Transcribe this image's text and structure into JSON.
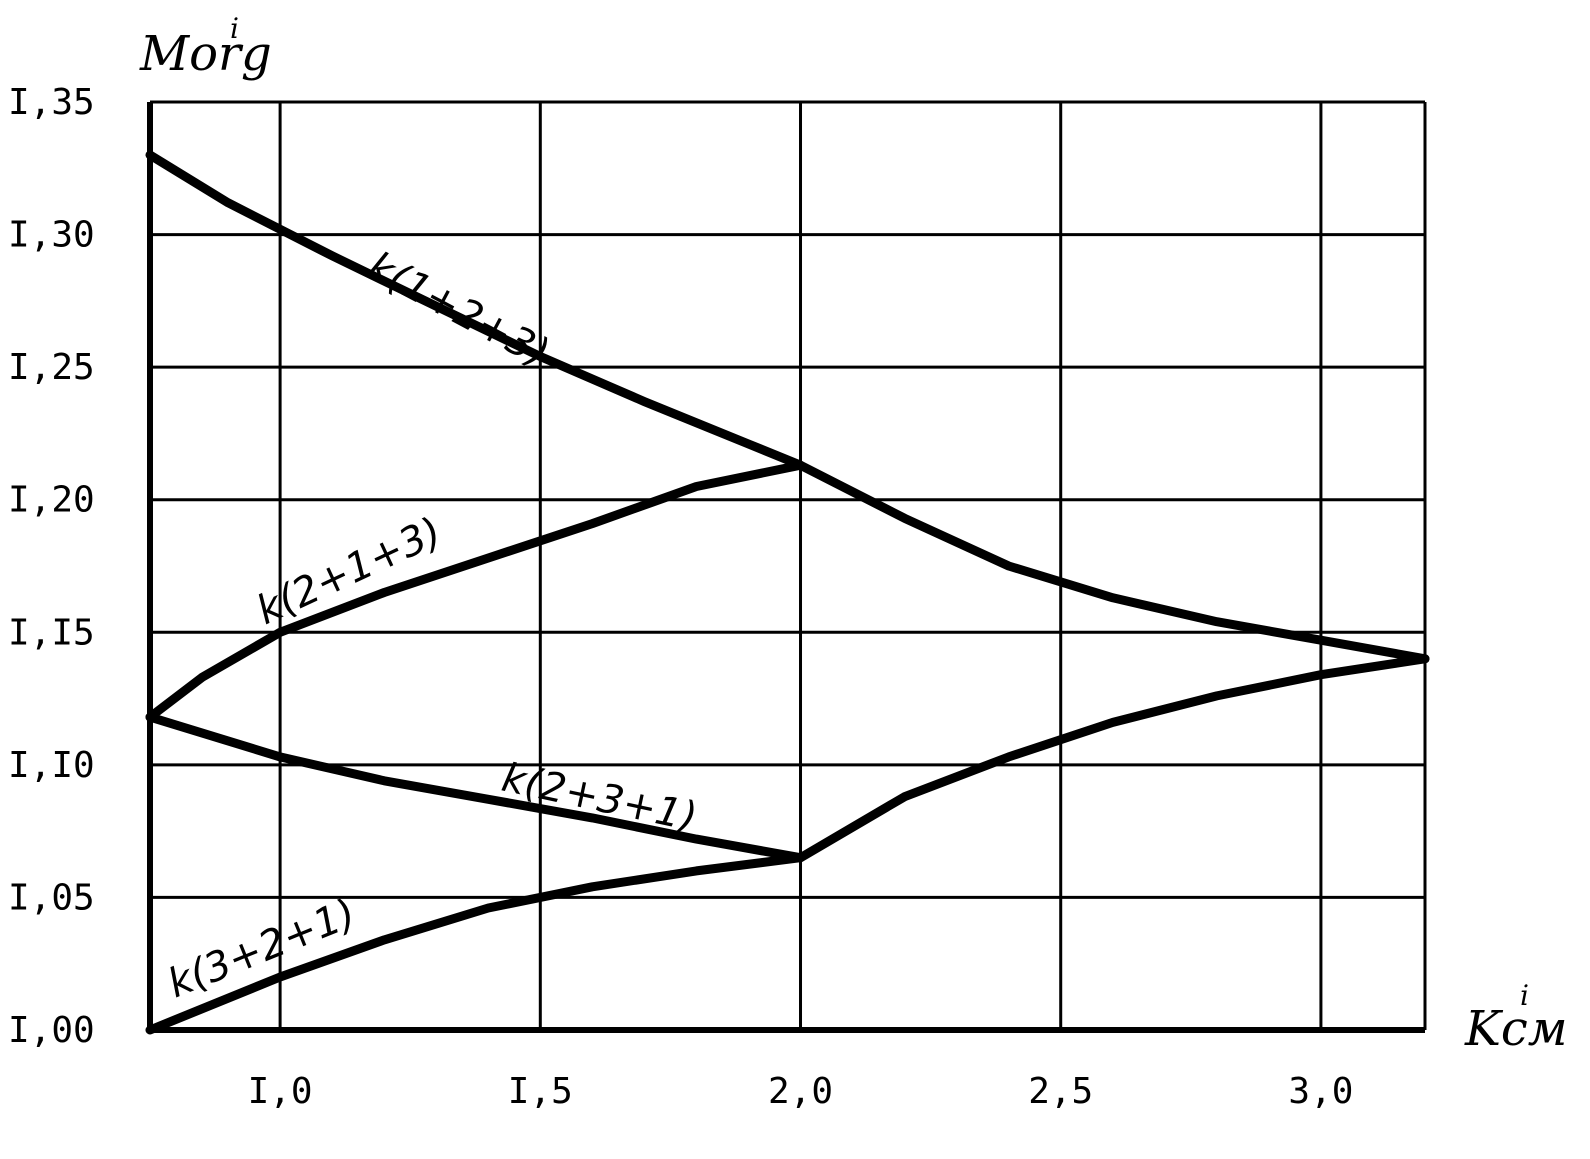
{
  "chart_data": {
    "type": "line",
    "xlabel": "Kсм",
    "xlabel_superscript": "i",
    "ylabel": "Morg",
    "ylabel_superscript": "i",
    "xlim": [
      0.75,
      3.2
    ],
    "ylim": [
      1.0,
      1.35
    ],
    "x_ticks": [
      1.0,
      1.5,
      2.0,
      2.5,
      3.0
    ],
    "x_tick_labels": [
      "I,0",
      "I,5",
      "2,0",
      "2,5",
      "3,0"
    ],
    "y_ticks": [
      1.0,
      1.05,
      1.1,
      1.15,
      1.2,
      1.25,
      1.3,
      1.35
    ],
    "y_tick_labels": [
      "I,00",
      "I,05",
      "I,I0",
      "I,I5",
      "I,20",
      "I,25",
      "I,30",
      "I,35"
    ],
    "grid": true,
    "series": [
      {
        "name": "k(1+2+3)",
        "x": [
          0.75,
          0.9,
          1.1,
          1.3,
          1.5,
          1.7,
          1.9,
          2.0,
          2.2,
          2.4,
          2.6,
          2.8,
          3.0,
          3.2
        ],
        "y": [
          1.33,
          1.312,
          1.292,
          1.273,
          1.254,
          1.237,
          1.221,
          1.213,
          1.193,
          1.175,
          1.163,
          1.154,
          1.147,
          1.14
        ]
      },
      {
        "name": "k(2+1+3)",
        "x": [
          0.75,
          0.85,
          1.0,
          1.2,
          1.4,
          1.6,
          1.8,
          2.0
        ],
        "y": [
          1.118,
          1.133,
          1.15,
          1.165,
          1.178,
          1.191,
          1.205,
          1.213
        ]
      },
      {
        "name": "k(2+3+1)",
        "x": [
          0.75,
          1.0,
          1.2,
          1.4,
          1.6,
          1.8,
          2.0
        ],
        "y": [
          1.118,
          1.103,
          1.094,
          1.087,
          1.08,
          1.072,
          1.065
        ]
      },
      {
        "name": "k(3+2+1)",
        "x": [
          0.75,
          1.0,
          1.2,
          1.4,
          1.6,
          1.8,
          2.0,
          2.2,
          2.4,
          2.6,
          2.8,
          3.0,
          3.2
        ],
        "y": [
          1.0,
          1.02,
          1.034,
          1.046,
          1.054,
          1.06,
          1.065,
          1.088,
          1.103,
          1.116,
          1.126,
          1.134,
          1.14
        ]
      }
    ]
  }
}
